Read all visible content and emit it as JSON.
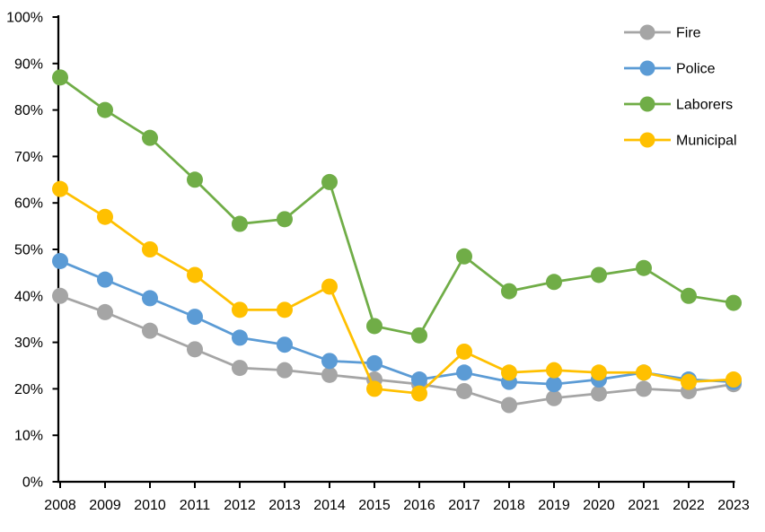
{
  "chart_data": {
    "type": "line",
    "title": "",
    "xlabel": "",
    "ylabel": "",
    "background_color": "#FFFFFF",
    "axis_color": "#000000",
    "text_color": "#000000",
    "grid": false,
    "legend_position": "top-right",
    "ylim": [
      0,
      100
    ],
    "ytick_step": 10,
    "yticks": [
      "0%",
      "10%",
      "20%",
      "30%",
      "40%",
      "50%",
      "60%",
      "70%",
      "80%",
      "90%",
      "100%"
    ],
    "x": [
      "2008",
      "2009",
      "2010",
      "2011",
      "2012",
      "2013",
      "2014",
      "2015",
      "2016",
      "2017",
      "2018",
      "2019",
      "2020",
      "2021",
      "2022",
      "2023"
    ],
    "series": [
      {
        "name": "Fire",
        "color": "#A5A5A5",
        "values": [
          40,
          36.5,
          32.5,
          28.5,
          24.5,
          24,
          23,
          22,
          21,
          19.5,
          16.5,
          18,
          19,
          20,
          19.5,
          21
        ]
      },
      {
        "name": "Police",
        "color": "#5B9BD5",
        "values": [
          47.5,
          43.5,
          39.5,
          35.5,
          31,
          29.5,
          26,
          25.5,
          22,
          23.5,
          21.5,
          21,
          22,
          23.5,
          22,
          21.5
        ]
      },
      {
        "name": "Laborers",
        "color": "#70AD47",
        "values": [
          87,
          80,
          74,
          65,
          55.5,
          56.5,
          64.5,
          33.5,
          31.5,
          48.5,
          41,
          43,
          44.5,
          46,
          40,
          38.5
        ]
      },
      {
        "name": "Municipal",
        "color": "#FFC000",
        "values": [
          63,
          57,
          50,
          44.5,
          37,
          37,
          42,
          20,
          19,
          28,
          23.5,
          24,
          23.5,
          23.5,
          21.5,
          22
        ]
      }
    ]
  }
}
